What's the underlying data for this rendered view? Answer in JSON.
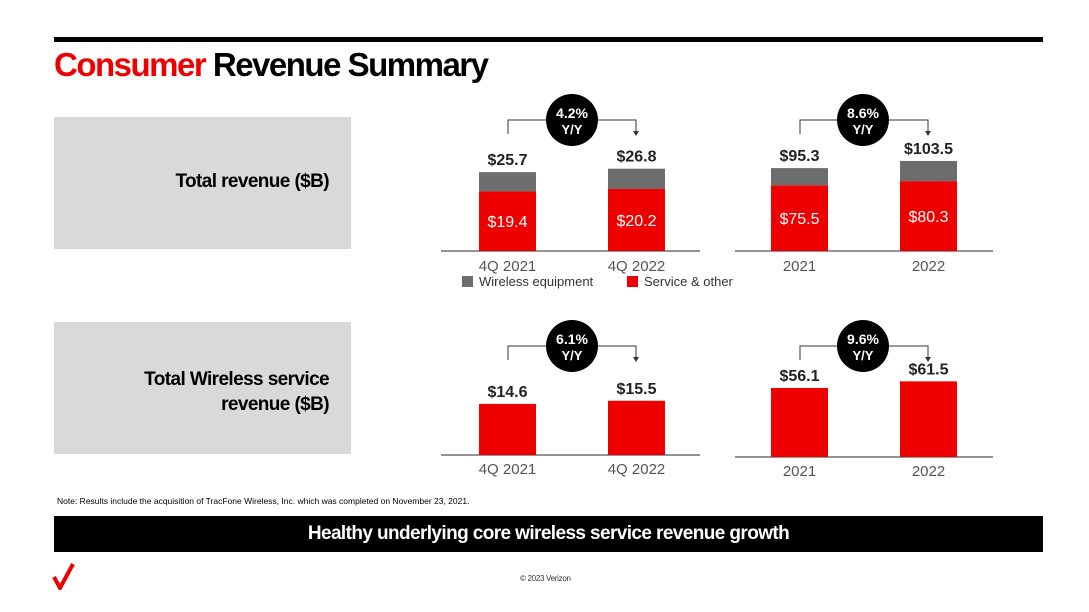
{
  "title": {
    "highlight": "Consumer",
    "rest": "Revenue Summary"
  },
  "panels": [
    {
      "lines": [
        "Total revenue ($B)"
      ]
    },
    {
      "lines": [
        "Total Wireless service",
        "revenue ($B)"
      ]
    }
  ],
  "legend": {
    "equipment": "Wireless equipment",
    "service": "Service & other"
  },
  "colors": {
    "equipment": "#6d6d6d",
    "service": "#ee0000",
    "accent": "#ee0000"
  },
  "note": "Note: Results include the acquisition of TracFone Wireless, Inc. which was completed on November 23, 2021.",
  "banner": "Healthy underlying core wireless service revenue growth",
  "copyright": "© 2023 Verizon",
  "logo": {
    "name": "verizon-check-icon"
  },
  "chart_data": [
    {
      "type": "bar",
      "stacked": true,
      "categories": [
        "4Q 2021",
        "4Q 2022"
      ],
      "series": [
        {
          "name": "Service & other",
          "values": [
            19.4,
            20.2
          ],
          "labels": [
            "$19.4",
            "$20.2"
          ]
        },
        {
          "name": "Wireless equipment",
          "values": [
            6.3,
            6.6
          ]
        }
      ],
      "totals": [
        25.7,
        26.8
      ],
      "total_labels": [
        "$25.7",
        "$26.8"
      ],
      "growth": {
        "value": "4.2%",
        "label": "Y/Y"
      }
    },
    {
      "type": "bar",
      "stacked": true,
      "categories": [
        "2021",
        "2022"
      ],
      "series": [
        {
          "name": "Service & other",
          "values": [
            75.5,
            80.3
          ],
          "labels": [
            "$75.5",
            "$80.3"
          ]
        },
        {
          "name": "Wireless equipment",
          "values": [
            19.8,
            23.2
          ]
        }
      ],
      "totals": [
        95.3,
        103.5
      ],
      "total_labels": [
        "$95.3",
        "$103.5"
      ],
      "growth": {
        "value": "8.6%",
        "label": "Y/Y"
      }
    },
    {
      "type": "bar",
      "categories": [
        "4Q 2021",
        "4Q 2022"
      ],
      "series": [
        {
          "values": [
            14.6,
            15.5
          ]
        }
      ],
      "totals": [
        14.6,
        15.5
      ],
      "total_labels": [
        "$14.6",
        "$15.5"
      ],
      "growth": {
        "value": "6.1%",
        "label": "Y/Y"
      }
    },
    {
      "type": "bar",
      "categories": [
        "2021",
        "2022"
      ],
      "series": [
        {
          "values": [
            56.1,
            61.5
          ]
        }
      ],
      "totals": [
        56.1,
        61.5
      ],
      "total_labels": [
        "$56.1",
        "$61.5"
      ],
      "growth": {
        "value": "9.6%",
        "label": "Y/Y"
      }
    }
  ]
}
